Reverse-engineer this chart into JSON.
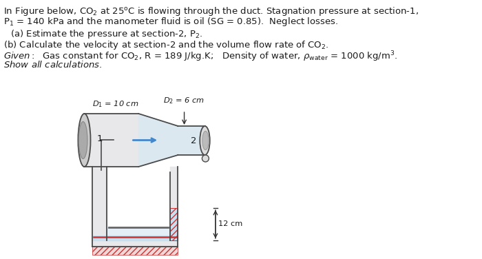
{
  "bg_color": "#ffffff",
  "text_color": "#1a1a1a",
  "fig_width": 7.0,
  "fig_height": 3.76,
  "dpi": 100,
  "dark_gray": "#4a4a4a",
  "light_gray_fill": "#e8e8eb",
  "nozzle_fill": "#dce8f0",
  "fluid_blue": "#c8dff0",
  "hatch_color": "#cc3333",
  "arrow_color": "#4488cc",
  "dim_color": "#333333"
}
